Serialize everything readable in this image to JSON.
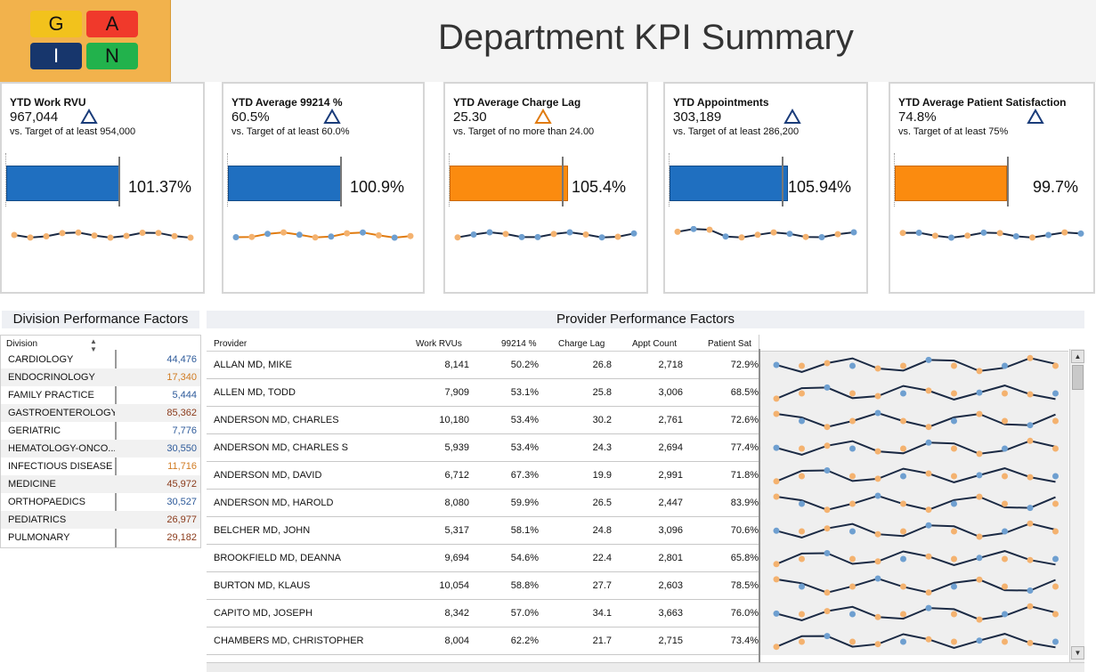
{
  "logo": {
    "letters": [
      "G",
      "A",
      "I",
      "N"
    ],
    "colors": [
      "#f2c21c",
      "#f0392b",
      "#17366c",
      "#22b24c"
    ]
  },
  "page_title": "Department KPI Summary",
  "colors": {
    "blue": "#1f6fc0",
    "orange": "#fb8b0f",
    "dot_blue": "#6e9fd0",
    "dot_orange": "#f4b26f",
    "tri_blue": "#1a3c7a",
    "tri_orange": "#e07b10"
  },
  "kpis": [
    {
      "title": "YTD Work RVU",
      "value": "967,044",
      "target": "vs. Target of at least 954,000",
      "pct": "101.37%",
      "pct_value": 101.37,
      "bar_color": "blue",
      "triangle": "triangle-up-icon",
      "tri_color": "blue"
    },
    {
      "title": "YTD Average 99214 %",
      "value": "60.5%",
      "target": "vs. Target of at least 60.0%",
      "pct": "100.9%",
      "pct_value": 100.9,
      "bar_color": "blue",
      "triangle": "triangle-up-icon",
      "tri_color": "blue"
    },
    {
      "title": "YTD Average Charge Lag",
      "value": "25.30",
      "target": "vs. Target of no more than 24.00",
      "pct": "105.4%",
      "pct_value": 105.4,
      "bar_color": "orange",
      "triangle": "triangle-up-icon",
      "tri_color": "orange"
    },
    {
      "title": "YTD Appointments",
      "value": "303,189",
      "target": "vs. Target of at least 286,200",
      "pct": "105.94%",
      "pct_value": 105.94,
      "bar_color": "blue",
      "triangle": "triangle-up-icon",
      "tri_color": "blue"
    },
    {
      "title": "YTD Average Patient Satisfaction",
      "value": "74.8%",
      "target": "vs. Target of at least 75%",
      "pct": "99.7%",
      "pct_value": 99.7,
      "bar_color": "orange",
      "triangle": "triangle-up-icon",
      "tri_color": "blue"
    }
  ],
  "division": {
    "header": "Division Performance Factors",
    "col_label": "Division",
    "sort_icon": "sort-icon",
    "rows": [
      {
        "name": "CARDIOLOGY",
        "value": "44,476",
        "color": "#2d5a9a"
      },
      {
        "name": "ENDOCRINOLOGY",
        "value": "17,340",
        "color": "#d07a20"
      },
      {
        "name": "FAMILY PRACTICE",
        "value": "5,444",
        "color": "#2d5a9a"
      },
      {
        "name": "GASTROENTEROLOGY",
        "value": "85,362",
        "color": "#8a3a1a"
      },
      {
        "name": "GERIATRIC",
        "value": "7,776",
        "color": "#2d5a9a"
      },
      {
        "name": "HEMATOLOGY-ONCO...",
        "value": "30,550",
        "color": "#2d5a9a"
      },
      {
        "name": "INFECTIOUS DISEASE",
        "value": "11,716",
        "color": "#d07a20"
      },
      {
        "name": "MEDICINE",
        "value": "45,972",
        "color": "#8a3a1a"
      },
      {
        "name": "ORTHOPAEDICS",
        "value": "30,527",
        "color": "#2d5a9a"
      },
      {
        "name": "PEDIATRICS",
        "value": "26,977",
        "color": "#8a3a1a"
      },
      {
        "name": "PULMONARY",
        "value": "29,182",
        "color": "#8a3a1a"
      }
    ]
  },
  "provider": {
    "header": "Provider Performance Factors",
    "columns": [
      "Provider",
      "Work RVUs",
      "99214 %",
      "Charge Lag",
      "Appt Count",
      "Patient Sat"
    ],
    "rows": [
      {
        "name": "ALLAN MD, MIKE",
        "rvu": "8,141",
        "p99214": "50.2%",
        "lag": "26.8",
        "appt": "2,718",
        "sat": "72.9%"
      },
      {
        "name": "ALLEN MD, TODD",
        "rvu": "7,909",
        "p99214": "53.1%",
        "lag": "25.8",
        "appt": "3,006",
        "sat": "68.5%"
      },
      {
        "name": "ANDERSON MD, CHARLES",
        "rvu": "10,180",
        "p99214": "53.4%",
        "lag": "30.2",
        "appt": "2,761",
        "sat": "72.6%"
      },
      {
        "name": "ANDERSON MD, CHARLES S",
        "rvu": "5,939",
        "p99214": "53.4%",
        "lag": "24.3",
        "appt": "2,694",
        "sat": "77.4%"
      },
      {
        "name": "ANDERSON MD, DAVID",
        "rvu": "6,712",
        "p99214": "67.3%",
        "lag": "19.9",
        "appt": "2,991",
        "sat": "71.8%"
      },
      {
        "name": "ANDERSON MD, HAROLD",
        "rvu": "8,080",
        "p99214": "59.9%",
        "lag": "26.5",
        "appt": "2,447",
        "sat": "83.9%"
      },
      {
        "name": "BELCHER MD, JOHN",
        "rvu": "5,317",
        "p99214": "58.1%",
        "lag": "24.8",
        "appt": "3,096",
        "sat": "70.6%"
      },
      {
        "name": "BROOKFIELD MD, DEANNA",
        "rvu": "9,694",
        "p99214": "54.6%",
        "lag": "22.4",
        "appt": "2,801",
        "sat": "65.8%"
      },
      {
        "name": "BURTON MD, KLAUS",
        "rvu": "10,054",
        "p99214": "58.8%",
        "lag": "27.7",
        "appt": "2,603",
        "sat": "78.5%"
      },
      {
        "name": "CAPITO MD, JOSEPH",
        "rvu": "8,342",
        "p99214": "57.0%",
        "lag": "34.1",
        "appt": "3,663",
        "sat": "76.0%"
      },
      {
        "name": "CHAMBERS MD, CHRISTOPHER",
        "rvu": "8,004",
        "p99214": "62.2%",
        "lag": "21.7",
        "appt": "2,715",
        "sat": "73.4%"
      }
    ]
  },
  "scroll": {
    "up_icon": "scroll-up-icon",
    "down_icon": "scroll-down-icon"
  }
}
